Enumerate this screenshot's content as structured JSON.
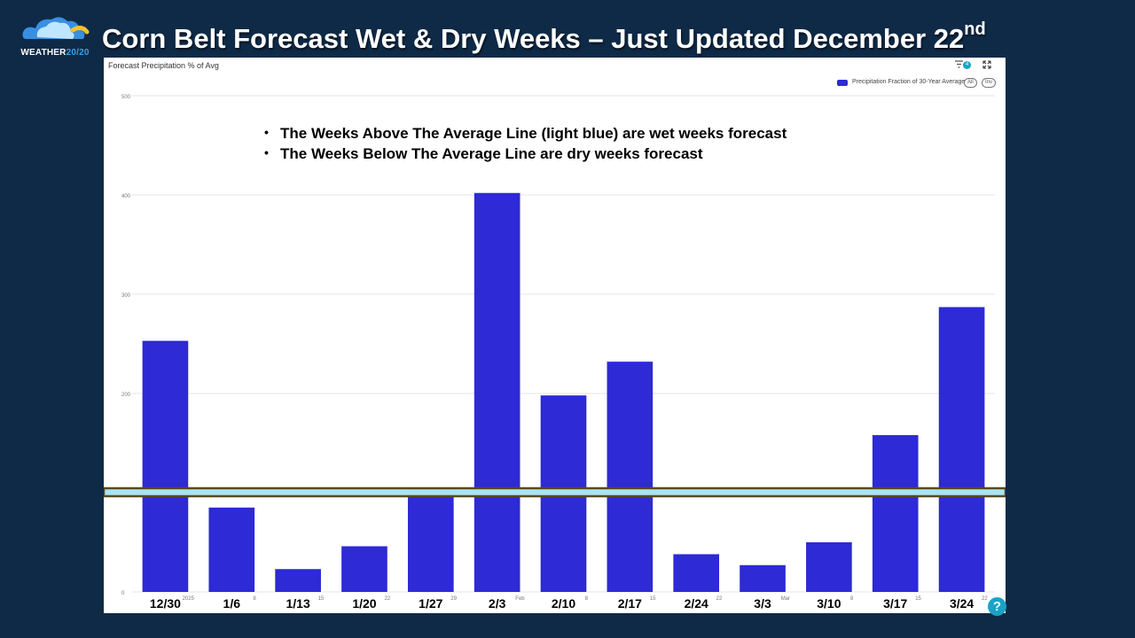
{
  "logo": {
    "text_main": "WEATHER",
    "text_accent": "20/20"
  },
  "slide_title": {
    "text": "Corn Belt Forecast Wet & Dry Weeks – Just Updated December 22",
    "suffix": "nd"
  },
  "panel": {
    "title": "Forecast Precipitation % of Avg",
    "filter_count": "4",
    "legend_label": "Precipitation Fraction of 30-Year Average",
    "pill_all": "All",
    "pill_inv": "Inv"
  },
  "annotations": [
    "The Weeks Above The Average Line (light blue) are wet weeks forecast",
    "The Weeks Below The Average Line are dry weeks forecast"
  ],
  "help_label": "?",
  "chart_data": {
    "type": "bar",
    "title": "Forecast Precipitation % of Avg",
    "series": [
      {
        "name": "Precipitation Fraction of 30-Year Average",
        "values": [
          253,
          85,
          23,
          46,
          100,
          402,
          198,
          232,
          38,
          27,
          50,
          158,
          287
        ]
      }
    ],
    "categories": [
      "12/30",
      "1/6",
      "1/13",
      "1/20",
      "1/27",
      "2/3",
      "2/10",
      "2/17",
      "2/24",
      "3/3",
      "3/10",
      "3/17",
      "3/24"
    ],
    "axis_ticks": [
      "2025",
      "8",
      "15",
      "22",
      "29",
      "Feb",
      "8",
      "15",
      "22",
      "Mar",
      "8",
      "15",
      "22"
    ],
    "y_ticks": [
      0,
      100,
      200,
      300,
      400,
      500
    ],
    "y_tick_labels": [
      "0",
      "",
      "200",
      "300",
      "400",
      "500"
    ],
    "ylim": [
      0,
      500
    ],
    "average_line": 100,
    "grid": true,
    "legend_position": "top-right",
    "colors": {
      "bar": "#2d2ad6",
      "average_line": "#a9e4f5",
      "average_border": "#5a4a1c",
      "grid": "#e6e6e6"
    }
  }
}
